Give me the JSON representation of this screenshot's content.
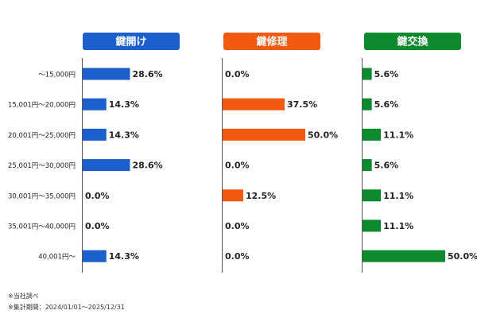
{
  "chart_data": {
    "type": "bar",
    "orientation": "horizontal",
    "categories": [
      "～15,000円",
      "15,001円～20,000円",
      "20,001円～25,000円",
      "25,001円～30,000円",
      "30,001円～35,000円",
      "35,001円～40,000円",
      "40,001円～"
    ],
    "value_suffix": "%",
    "series": [
      {
        "name": "鍵開け",
        "color": "#1a5fcc",
        "values": [
          28.6,
          14.3,
          14.3,
          28.6,
          0.0,
          0.0,
          14.3
        ]
      },
      {
        "name": "鍵修理",
        "color": "#f25a12",
        "values": [
          0.0,
          37.5,
          50.0,
          0.0,
          12.5,
          0.0,
          0.0
        ]
      },
      {
        "name": "鍵交換",
        "color": "#0d8a2e",
        "values": [
          5.6,
          5.6,
          11.1,
          5.6,
          11.1,
          11.1,
          50.0
        ]
      }
    ],
    "xlim": [
      0,
      50
    ],
    "grid": false
  },
  "notes": {
    "line1": "※当社調べ",
    "line2": "※集計期間：2024/01/01～2025/12/31"
  }
}
